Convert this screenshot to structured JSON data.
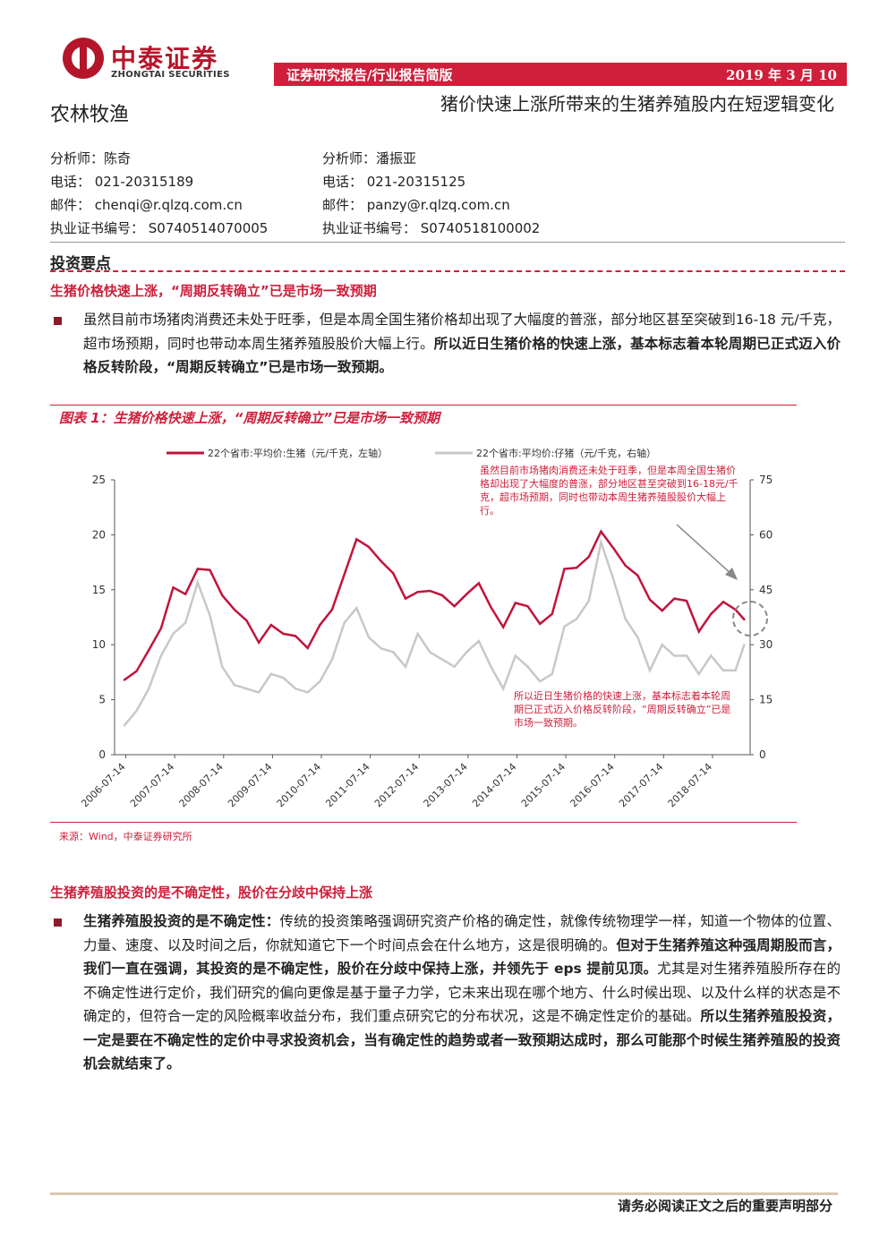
{
  "header": {
    "brand_cn": "中泰证券",
    "brand_en": "ZHONGTAI SECURITIES",
    "report_type": "证券研究报告/行业报告简版",
    "date": "2019 年 3 月 10 日",
    "sector": "农林牧渔",
    "title": "猪价快速上涨所带来的生猪养殖股内在短逻辑变化"
  },
  "analysts": [
    {
      "name": "分析师：陈奇",
      "phone": "电话：  021-20315189",
      "email": "邮件：  chenqi@r.qlzq.com.cn",
      "cert": "执业证书编号：  S0740514070005"
    },
    {
      "name": "分析师：潘振亚",
      "phone": "电话：  021-20315125",
      "email": "邮件：  panzy@r.qlzq.com.cn",
      "cert": "执业证书编号：  S0740518100002"
    }
  ],
  "section_title": "投资要点",
  "point1": {
    "heading": "生猪价格快速上涨，“周期反转确立”已是市场一致预期",
    "normal": "虽然目前市场猪肉消费还未处于旺季，但是本周全国生猪价格却出现了大幅度的普涨，部分地区甚至突破到16-18 元/千克，超市场预期，同时也带动本周生猪养殖股股价大幅上行。",
    "bold": "所以近日生猪价格的快速上涨，基本标志着本轮周期已正式迈入价格反转阶段，“周期反转确立”已是市场一致预期。"
  },
  "figure": {
    "title": "图表 1：生猪价格快速上涨，“周期反转确立”已是市场一致预期",
    "source": "来源：Wind，中泰证券研究所"
  },
  "chart_data": {
    "type": "line",
    "legend": [
      "22个省市:平均价:生猪（元/千克，左轴）",
      "22个省市:平均价:仔猪（元/千克，右轴）"
    ],
    "colors": {
      "hog": "#c0143c",
      "piglet": "#c8c8c8"
    },
    "x_ticks": [
      "2006-07-14",
      "2007-07-14",
      "2008-07-14",
      "2009-07-14",
      "2010-07-14",
      "2011-07-14",
      "2012-07-14",
      "2013-07-14",
      "2014-07-14",
      "2015-07-14",
      "2016-07-14",
      "2017-07-14",
      "2018-07-14"
    ],
    "y_left_ticks": [
      "0",
      "5",
      "10",
      "15",
      "20",
      "25"
    ],
    "y_right_ticks": [
      "0",
      "15",
      "30",
      "45",
      "60",
      "75"
    ],
    "ylim_left": [
      0,
      25
    ],
    "ylim_right": [
      0,
      75
    ],
    "x": [
      2006.5,
      2006.75,
      2007.0,
      2007.25,
      2007.5,
      2007.75,
      2008.0,
      2008.25,
      2008.5,
      2008.75,
      2009.0,
      2009.25,
      2009.5,
      2009.75,
      2010.0,
      2010.25,
      2010.5,
      2010.75,
      2011.0,
      2011.25,
      2011.5,
      2011.75,
      2012.0,
      2012.25,
      2012.5,
      2012.75,
      2013.0,
      2013.25,
      2013.5,
      2013.75,
      2014.0,
      2014.25,
      2014.5,
      2014.75,
      2015.0,
      2015.25,
      2015.5,
      2015.75,
      2016.0,
      2016.25,
      2016.5,
      2016.75,
      2017.0,
      2017.25,
      2017.5,
      2017.75,
      2018.0,
      2018.25,
      2018.5,
      2018.75,
      2019.0,
      2019.18
    ],
    "series": [
      {
        "name": "22个省市:平均价:生猪（元/千克，左轴）",
        "axis": "left",
        "values": [
          6.8,
          7.6,
          9.5,
          11.5,
          15.2,
          14.6,
          16.9,
          16.8,
          14.5,
          13.2,
          12.2,
          10.2,
          11.8,
          11.0,
          10.8,
          9.7,
          11.8,
          13.2,
          16.4,
          19.6,
          18.9,
          17.6,
          16.5,
          14.2,
          14.8,
          14.9,
          14.5,
          13.5,
          14.6,
          15.6,
          13.4,
          11.6,
          13.8,
          13.5,
          11.9,
          12.8,
          16.9,
          17.0,
          18.0,
          20.3,
          18.8,
          17.2,
          16.3,
          14.1,
          13.1,
          14.2,
          14.0,
          11.2,
          12.8,
          13.9,
          13.2,
          12.3
        ]
      },
      {
        "name": "22个省市:平均价:仔猪（元/千克，右轴）",
        "axis": "right",
        "values": [
          8.0,
          12.0,
          18.0,
          27.0,
          33.0,
          36.0,
          47.0,
          38.0,
          24.0,
          19.0,
          18.0,
          17.0,
          22.0,
          21.0,
          18.0,
          17.0,
          20.0,
          26.0,
          36.0,
          40.0,
          32.0,
          29.0,
          28.0,
          24.0,
          33.0,
          28.0,
          26.0,
          24.0,
          28.0,
          31.0,
          24.0,
          18.0,
          27.0,
          24.0,
          20.0,
          22.0,
          35.0,
          37.0,
          42.0,
          58.0,
          48.0,
          37.0,
          32.0,
          23.0,
          30.0,
          27.0,
          27.0,
          22.0,
          27.0,
          23.0,
          23.0,
          30.0
        ]
      }
    ],
    "annotations": [
      "虽然目前市场猪肉消费还未处于旺季，但是本周全国生猪价格却出现了大幅度的普涨，部分地区甚至突破到16-18元/千克，超市场预期，同时也带动本周生猪养殖股股价大幅上行。",
      "所以近日生猪价格的快速上涨，基本标志着本轮周期已正式迈入价格反转阶段，“周期反转确立”已是市场一致预期。"
    ]
  },
  "point2": {
    "heading": "生猪养殖股投资的是不确定性，股价在分歧中保持上涨",
    "p1_bold": "生猪养殖股投资的是不确定性：",
    "p1_normal": "传统的投资策略强调研究资产价格的确定性，就像传统物理学一样，知道一个物体的位置、力量、速度、以及时间之后，你就知道它下一个时间点会在什么地方，这是很明确的。",
    "p1_bold2": "但对于生猪养殖这种强周期股而言，我们一直在强调，其投资的是不确定性，股价在分歧中保持上涨，并领先于 eps 提前见顶。",
    "p1_normal2": "尤其是对生猪养殖股所存在的不确定性进行定价，我们研究的偏向更像是基于量子力学，它未来出现在哪个地方、什么时候出现、以及什么样的状态是不确定的，但符合一定的风险概率收益分布，我们重点研究它的分布状况，这是不确定性定价的基础。",
    "p1_bold3": "所以生猪养殖股投资，一定是要在不确定性的定价中寻求投资机会，当有确定性的趋势或者一致预期达成时，那么可能那个时候生猪养殖股的投资机会就结束了。"
  },
  "footer": "请务必阅读正文之后的重要声明部分"
}
